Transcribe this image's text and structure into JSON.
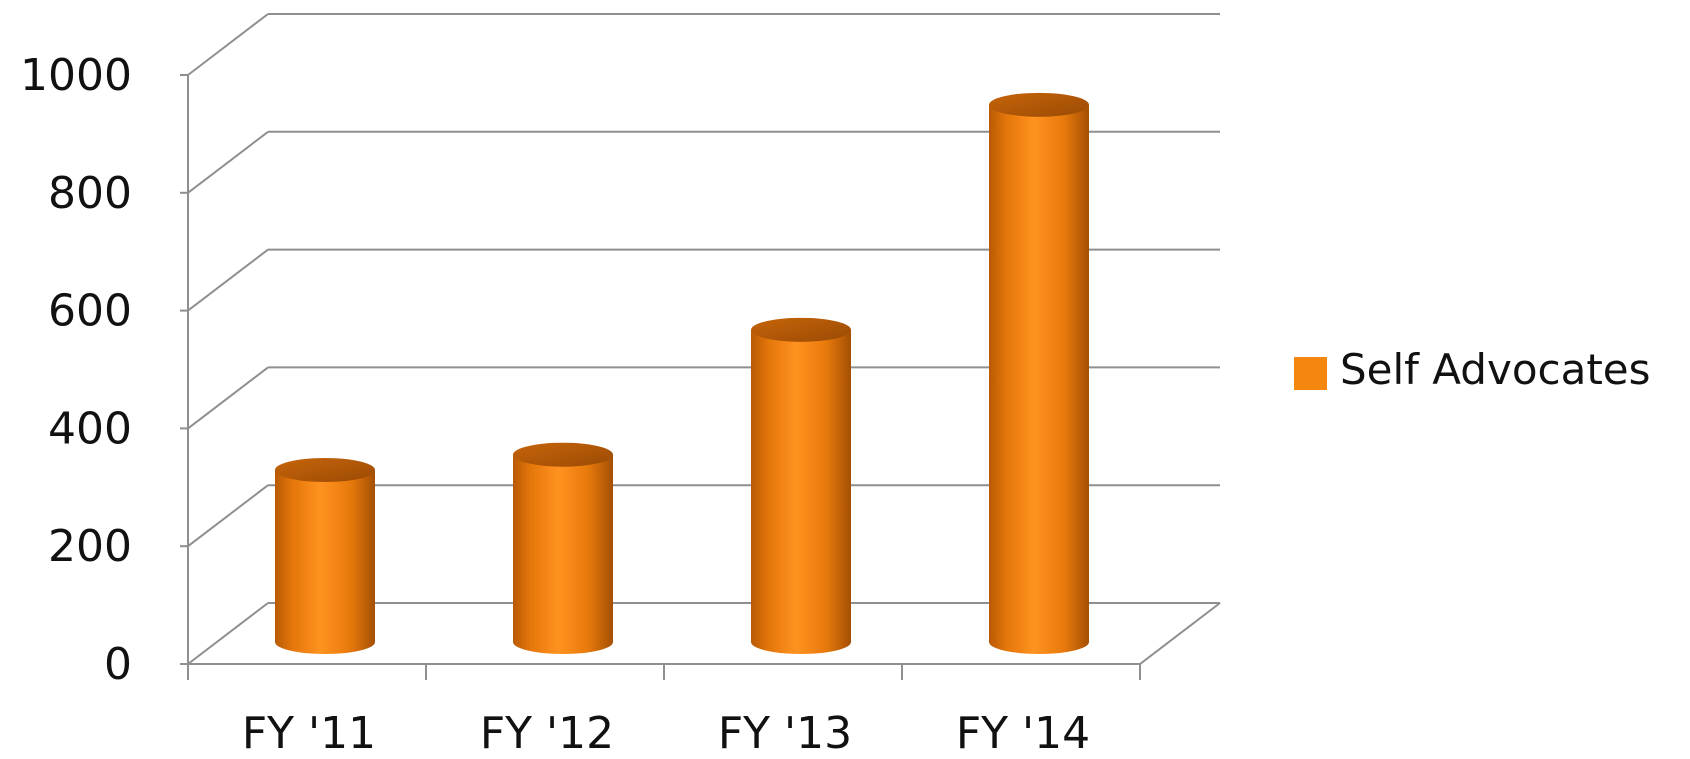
{
  "chart_data": {
    "type": "bar",
    "style": "3d-cylinder",
    "categories": [
      "FY '11",
      "FY '12",
      "FY '13",
      "FY '14"
    ],
    "series": [
      {
        "name": "Self Advocates",
        "values": [
          292,
          318,
          530,
          912
        ],
        "color": "#F5860F"
      }
    ],
    "yticks": [
      "0",
      "200",
      "400",
      "600",
      "800",
      "1000"
    ],
    "ylim": [
      0,
      1000
    ],
    "ytick_step": 200,
    "grid": true,
    "legend": {
      "position": "right",
      "label": "Self Advocates"
    },
    "title": "",
    "xlabel": "",
    "ylabel": ""
  }
}
